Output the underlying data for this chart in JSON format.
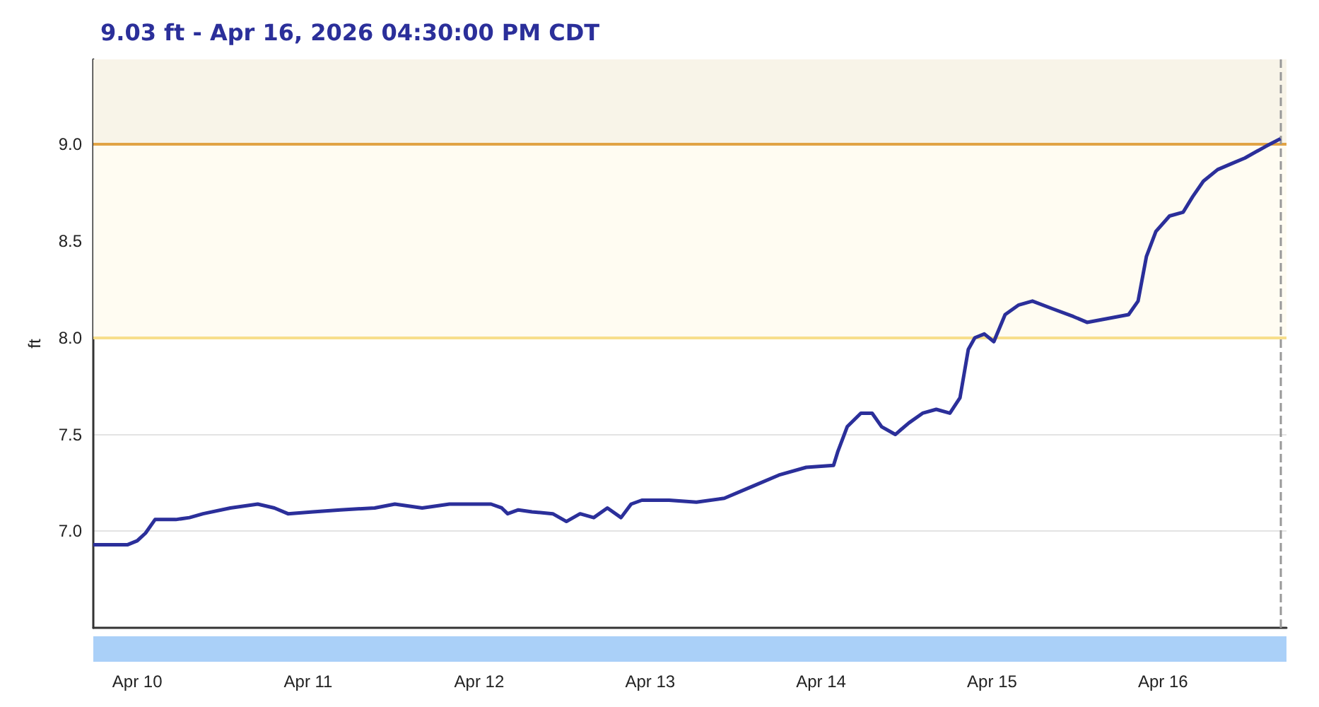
{
  "chart_data": {
    "type": "line",
    "title": "9.03 ft - Apr 16, 2026 04:30:00 PM CDT",
    "ylabel": "ft",
    "xlim": [
      "2026-04-09T17:50",
      "2026-04-16T17:20"
    ],
    "ylim": [
      6.5,
      9.44
    ],
    "xticks": [
      {
        "value": "2026-04-10",
        "label": "Apr 10"
      },
      {
        "value": "2026-04-11",
        "label": "Apr 11"
      },
      {
        "value": "2026-04-12",
        "label": "Apr 12"
      },
      {
        "value": "2026-04-13",
        "label": "Apr 13"
      },
      {
        "value": "2026-04-14",
        "label": "Apr 14"
      },
      {
        "value": "2026-04-15",
        "label": "Apr 15"
      },
      {
        "value": "2026-04-16",
        "label": "Apr 16"
      }
    ],
    "yticks": [
      {
        "value": 7,
        "label": "7.0"
      },
      {
        "value": 7.5,
        "label": "7.5"
      },
      {
        "value": 8,
        "label": "8.0"
      },
      {
        "value": 8.5,
        "label": "8.5"
      },
      {
        "value": 9,
        "label": "9.0"
      }
    ],
    "grid": "y",
    "marker": "none",
    "line_style": "solid",
    "bands": [
      {
        "axis": "y",
        "from": 8,
        "to": 9,
        "color": "#fffcf2"
      },
      {
        "axis": "y",
        "from": 9,
        "to": 9.44,
        "color": "#f8f4e8"
      }
    ],
    "ref_lines": [
      {
        "axis": "y",
        "value": 8,
        "color": "#f7df8c",
        "line_style": "solid"
      },
      {
        "axis": "y",
        "value": 9,
        "color": "#e1a345",
        "line_style": "solid"
      },
      {
        "axis": "x",
        "value": "2026-04-16T16:30",
        "color": "#999999",
        "line_style": "dashed"
      }
    ],
    "series": [
      {
        "color": "#2b2f9a",
        "x": [
          "2026-04-09T17:50",
          "2026-04-09T20:45",
          "2026-04-09T22:40",
          "2026-04-10T00:00",
          "2026-04-10T01:10",
          "2026-04-10T02:30",
          "2026-04-10T03:30",
          "2026-04-10T05:25",
          "2026-04-10T07:20",
          "2026-04-10T09:15",
          "2026-04-10T13:05",
          "2026-04-10T16:55",
          "2026-04-10T19:15",
          "2026-04-10T21:10",
          "2026-04-11T00:40",
          "2026-04-11T04:30",
          "2026-04-11T09:20",
          "2026-04-11T12:10",
          "2026-04-11T16:00",
          "2026-04-11T19:50",
          "2026-04-12T01:40",
          "2026-04-12T03:10",
          "2026-04-12T04:00",
          "2026-04-12T05:30",
          "2026-04-12T07:25",
          "2026-04-12T10:20",
          "2026-04-12T12:15",
          "2026-04-12T14:10",
          "2026-04-12T16:05",
          "2026-04-12T18:00",
          "2026-04-12T19:55",
          "2026-04-12T21:20",
          "2026-04-12T22:50",
          "2026-04-13T02:40",
          "2026-04-13T06:30",
          "2026-04-13T10:25",
          "2026-04-13T14:15",
          "2026-04-13T18:05",
          "2026-04-13T21:55",
          "2026-04-14T01:45",
          "2026-04-14T02:20",
          "2026-04-14T03:40",
          "2026-04-14T05:35",
          "2026-04-14T07:10",
          "2026-04-14T08:30",
          "2026-04-14T10:25",
          "2026-04-14T12:20",
          "2026-04-14T14:15",
          "2026-04-14T16:10",
          "2026-04-14T18:05",
          "2026-04-14T19:30",
          "2026-04-14T20:40",
          "2026-04-14T21:35",
          "2026-04-14T22:55",
          "2026-04-15T00:15",
          "2026-04-15T01:50",
          "2026-04-15T03:45",
          "2026-04-15T05:40",
          "2026-04-15T08:30",
          "2026-04-15T11:25",
          "2026-04-15T13:20",
          "2026-04-15T16:15",
          "2026-04-15T19:10",
          "2026-04-15T20:30",
          "2026-04-15T21:40",
          "2026-04-15T23:00",
          "2026-04-16T00:55",
          "2026-04-16T02:50",
          "2026-04-16T04:10",
          "2026-04-16T05:40",
          "2026-04-16T07:40",
          "2026-04-16T09:35",
          "2026-04-16T11:30",
          "2026-04-16T14:25",
          "2026-04-16T16:30"
        ],
        "values": [
          6.93,
          6.93,
          6.93,
          6.95,
          6.99,
          7.06,
          7.06,
          7.06,
          7.07,
          7.09,
          7.12,
          7.14,
          7.12,
          7.09,
          7.1,
          7.11,
          7.12,
          7.14,
          7.12,
          7.14,
          7.14,
          7.12,
          7.09,
          7.11,
          7.1,
          7.09,
          7.05,
          7.09,
          7.07,
          7.12,
          7.07,
          7.14,
          7.16,
          7.16,
          7.15,
          7.17,
          7.23,
          7.29,
          7.33,
          7.34,
          7.41,
          7.54,
          7.61,
          7.61,
          7.54,
          7.5,
          7.56,
          7.61,
          7.63,
          7.61,
          7.69,
          7.94,
          8.0,
          8.02,
          7.98,
          8.12,
          8.17,
          8.19,
          8.15,
          8.11,
          8.08,
          8.1,
          8.12,
          8.19,
          8.42,
          8.55,
          8.63,
          8.65,
          8.73,
          8.81,
          8.87,
          8.9,
          8.93,
          8.99,
          9.03
        ]
      }
    ]
  }
}
